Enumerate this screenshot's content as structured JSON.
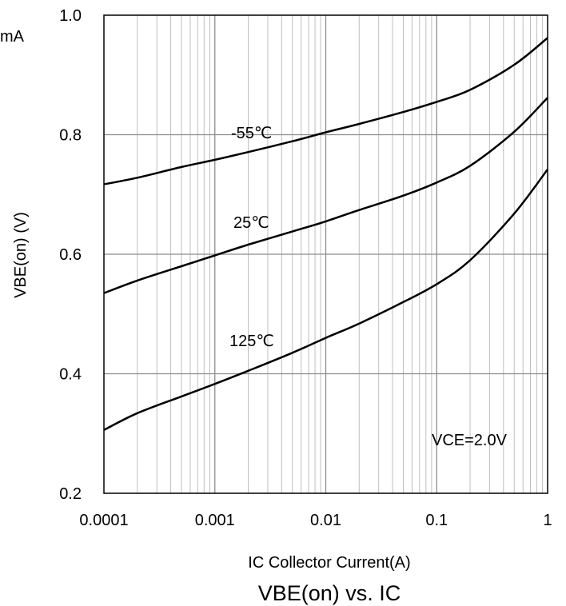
{
  "chart_data": {
    "type": "line",
    "title": "VBE(on) vs. IC",
    "partial_text": "mA",
    "xlabel": "IC Collector Current(A)",
    "ylabel": "VBE(on) (V)",
    "x_scale": "log",
    "xlim": [
      0.0001,
      1
    ],
    "ylim": [
      0.2,
      1.0
    ],
    "x_ticks": [
      "0.0001",
      "0.001",
      "0.01",
      "0.1",
      "1"
    ],
    "y_ticks": [
      "0.2",
      "0.4",
      "0.6",
      "0.8",
      "1.0"
    ],
    "grid": true,
    "annotation": "VCE=2.0V",
    "series": [
      {
        "name": "-55℃",
        "x": [
          0.0001,
          0.0002,
          0.0005,
          0.001,
          0.002,
          0.005,
          0.01,
          0.02,
          0.05,
          0.1,
          0.2,
          0.5,
          1
        ],
        "y": [
          0.717,
          0.728,
          0.746,
          0.758,
          0.771,
          0.789,
          0.804,
          0.818,
          0.838,
          0.855,
          0.875,
          0.917,
          0.962
        ]
      },
      {
        "name": "25℃",
        "x": [
          0.0001,
          0.0002,
          0.0005,
          0.001,
          0.002,
          0.005,
          0.01,
          0.02,
          0.05,
          0.1,
          0.2,
          0.5,
          1
        ],
        "y": [
          0.535,
          0.556,
          0.58,
          0.598,
          0.616,
          0.638,
          0.655,
          0.674,
          0.698,
          0.72,
          0.748,
          0.805,
          0.862
        ]
      },
      {
        "name": "125℃",
        "x": [
          0.0001,
          0.0002,
          0.0005,
          0.001,
          0.002,
          0.005,
          0.01,
          0.02,
          0.05,
          0.1,
          0.2,
          0.5,
          1
        ],
        "y": [
          0.306,
          0.334,
          0.362,
          0.383,
          0.405,
          0.435,
          0.46,
          0.484,
          0.52,
          0.55,
          0.59,
          0.668,
          0.742
        ]
      }
    ]
  }
}
